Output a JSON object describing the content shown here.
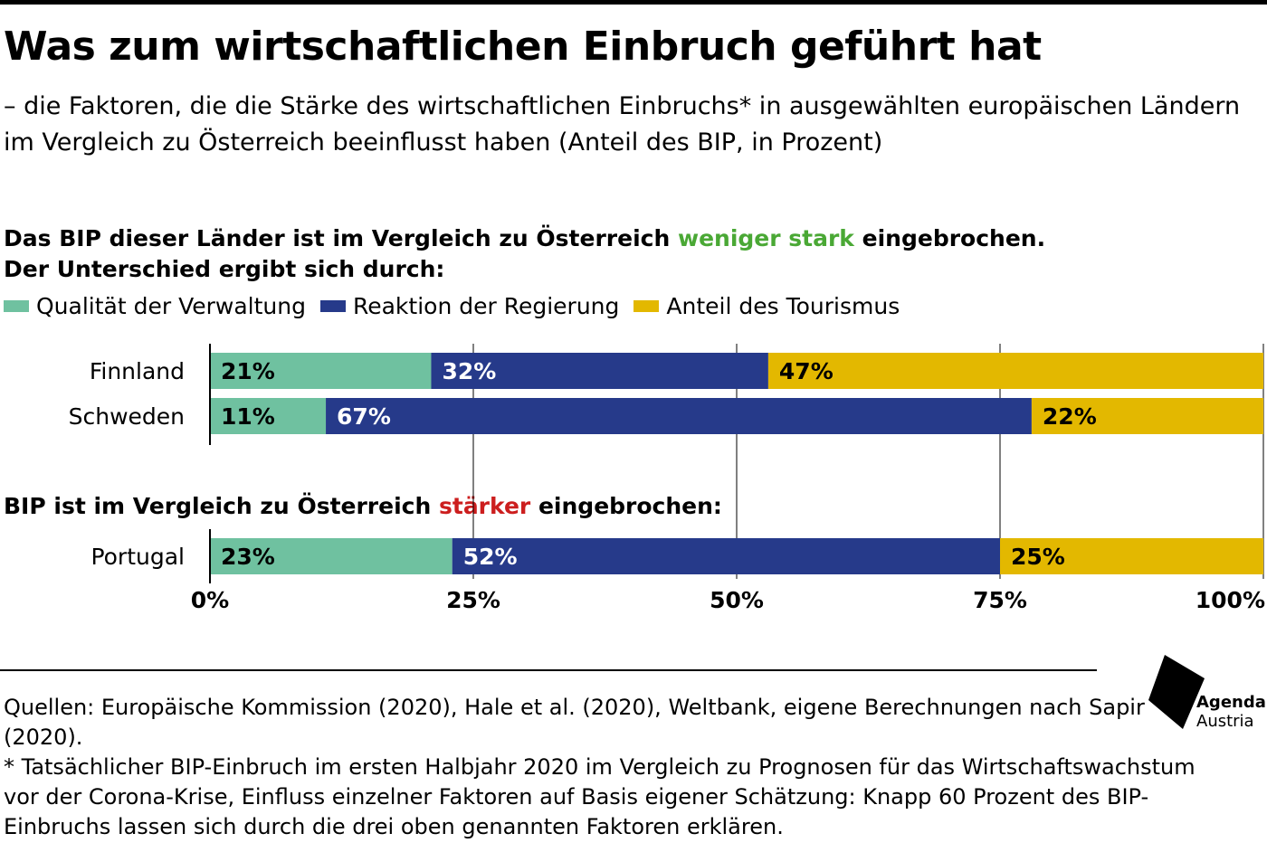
{
  "title": "Was zum wirtschaftlichen Einbruch geführt hat",
  "subtitle": "– die Faktoren, die die Stärke des wirtschaftlichen Einbruchs* in ausgewählten europäischen Ländern im Vergleich zu Österreich beeinflusst haben (Anteil des BIP, in Prozent)",
  "section1": {
    "line1_pre": "Das BIP dieser Länder ist im Vergleich zu Österreich ",
    "line1_highlight": "weniger stark",
    "line1_post": " eingebrochen.",
    "line2": "Der Unterschied ergibt sich durch:",
    "highlight_color": "#4aa835"
  },
  "section2": {
    "pre": "BIP ist im Vergleich zu Österreich ",
    "highlight": "stärker",
    "post": " eingebrochen:",
    "highlight_color": "#cc1e1e"
  },
  "legend": [
    {
      "label": "Qualität der Verwaltung",
      "color": "#6fc1a0"
    },
    {
      "label": "Reaktion der Regierung",
      "color": "#263a8a"
    },
    {
      "label": "Anteil des Tourismus",
      "color": "#e3b800"
    }
  ],
  "chart_data": {
    "type": "bar",
    "orientation": "horizontal",
    "stacked": true,
    "categories": [
      "Finnland",
      "Schweden",
      "Portugal"
    ],
    "series": [
      {
        "name": "Qualität der Verwaltung",
        "values": [
          21,
          11,
          23
        ],
        "color": "#6fc1a0",
        "label_color": "#000000"
      },
      {
        "name": "Reaktion der Regierung",
        "values": [
          32,
          67,
          52
        ],
        "color": "#263a8a",
        "label_color": "#ffffff"
      },
      {
        "name": "Anteil des Tourismus",
        "values": [
          47,
          22,
          25
        ],
        "color": "#e3b800",
        "label_color": "#000000"
      }
    ],
    "data_labels": [
      [
        "21%",
        "32%",
        "47%"
      ],
      [
        "11%",
        "67%",
        "22%"
      ],
      [
        "23%",
        "52%",
        "25%"
      ]
    ],
    "xlim": [
      0,
      100
    ],
    "xticks": [
      "0%",
      "25%",
      "50%",
      "75%",
      "100%"
    ],
    "grid": true,
    "legend_position": "top-left"
  },
  "sources": {
    "line1": "Quellen: Europäische Kommission (2020), Hale et al. (2020), Weltbank, eigene Berechnungen nach Sapir (2020).",
    "line2": "* Tatsächlicher BIP-Einbruch im ersten Halbjahr 2020 im Vergleich zu Prognosen für das Wirtschaftswachstum vor der Corona-Krise, Einfluss einzelner Faktoren auf Basis eigener Schätzung: Knapp 60 Prozent des BIP-Einbruchs lassen sich durch die drei oben genannten Faktoren erklären."
  },
  "logo": {
    "line1": "Agenda",
    "line2": "Austria"
  }
}
